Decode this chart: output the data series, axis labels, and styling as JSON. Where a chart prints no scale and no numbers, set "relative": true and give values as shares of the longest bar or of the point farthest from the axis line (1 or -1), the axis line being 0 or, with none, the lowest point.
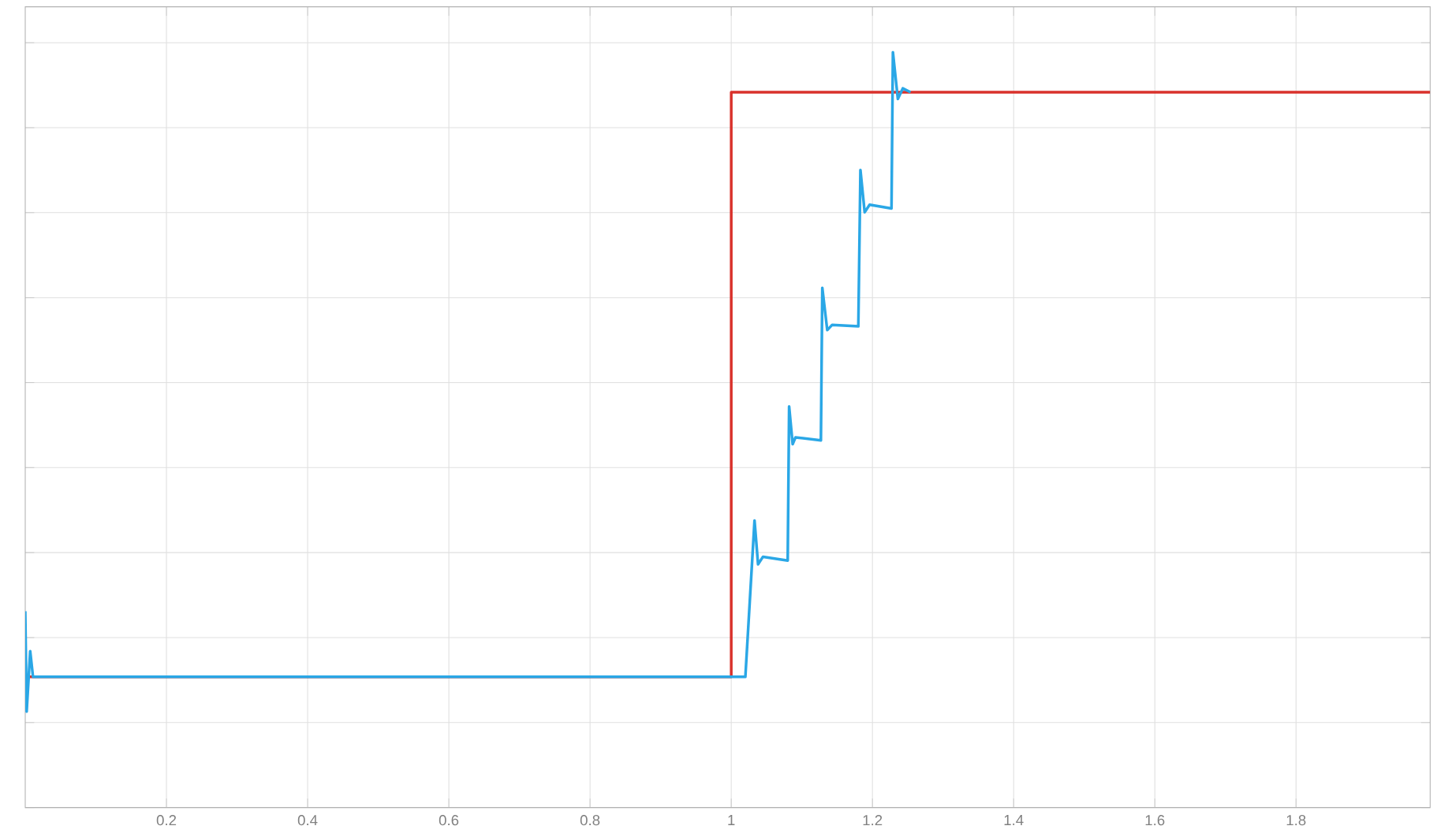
{
  "chart_data": {
    "type": "line",
    "relative": true,
    "grid": true,
    "marker": "none",
    "line_style": "solid",
    "xlim": [
      0,
      1.99
    ],
    "xticks": [
      {
        "value": 0.2,
        "label": "0.2"
      },
      {
        "value": 0.4,
        "label": "0.4"
      },
      {
        "value": 0.6,
        "label": "0.6"
      },
      {
        "value": 0.8,
        "label": "0.8"
      },
      1,
      {
        "value": 1.2,
        "label": "1.2"
      },
      {
        "value": 1.4,
        "label": "1.4"
      },
      {
        "value": 1.6,
        "label": "1.6"
      },
      {
        "value": 1.8,
        "label": "1.8"
      }
    ],
    "series": [
      {
        "color": "#d9312b",
        "x": [
          0,
          1,
          1,
          1.99
        ],
        "values": [
          0.173,
          0.173,
          0.947,
          0.947
        ]
      },
      {
        "color": "#2aa7e6",
        "x": [
          0,
          0.002,
          0.007,
          0.011,
          1.02,
          1.033,
          1.038,
          1.045,
          1.08,
          1.082,
          1.087,
          1.091,
          1.127,
          1.129,
          1.136,
          1.143,
          1.18,
          1.183,
          1.189,
          1.196,
          1.227,
          1.229,
          1.236,
          1.243,
          1.254
        ],
        "values": [
          0.26,
          0.127,
          0.207,
          0.173,
          0.173,
          0.38,
          0.322,
          0.332,
          0.327,
          0.531,
          0.481,
          0.49,
          0.486,
          0.688,
          0.632,
          0.639,
          0.637,
          0.844,
          0.788,
          0.798,
          0.793,
          1,
          0.938,
          0.952,
          0.947
        ]
      }
    ]
  }
}
